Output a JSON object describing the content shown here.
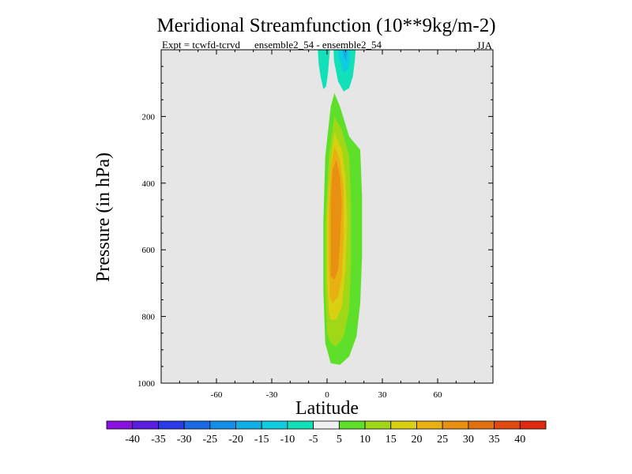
{
  "chart_data": {
    "type": "contour",
    "title": "Meridional Streamfunction (10**9kg/m-2)",
    "subtitle_left": "Expt = tcwfd-tcrvd",
    "subtitle_mid": "ensemble2_54 - ensemble2_54",
    "season": "JJA",
    "xlabel": "Latitude",
    "ylabel": "Pressure (in hPa)",
    "xlim": [
      -90,
      90
    ],
    "ylim": [
      1000,
      0
    ],
    "xticks": [
      -60,
      -30,
      0,
      30,
      60
    ],
    "yticks": [
      200,
      400,
      600,
      800,
      1000
    ],
    "background_color": "#e6e6e6",
    "colorbar": {
      "labels": [
        "-40",
        "-35",
        "-30",
        "-25",
        "-20",
        "-15",
        "-10",
        "-5",
        "5",
        "10",
        "15",
        "20",
        "25",
        "30",
        "35",
        "40"
      ],
      "colors": [
        "#8a12e0",
        "#5a1ee0",
        "#2a3ae6",
        "#1a6ae6",
        "#128ee6",
        "#10b0e6",
        "#10cce0",
        "#12e0b8",
        "#f0f0f0",
        "#5ee02a",
        "#a0d818",
        "#d8d010",
        "#e8b010",
        "#e89012",
        "#e07010",
        "#e04a10",
        "#e02a10"
      ]
    },
    "regions": [
      {
        "name": "positive-cell-15",
        "level": 5,
        "color": "#5ee02a",
        "points": [
          [
            -1,
            880
          ],
          [
            -2,
            720
          ],
          [
            -2,
            520
          ],
          [
            -1,
            320
          ],
          [
            2,
            170
          ],
          [
            4,
            130
          ],
          [
            7,
            170
          ],
          [
            12,
            260
          ],
          [
            18,
            300
          ],
          [
            19,
            440
          ],
          [
            19,
            620
          ],
          [
            18,
            760
          ],
          [
            16,
            860
          ],
          [
            12,
            920
          ],
          [
            7,
            945
          ],
          [
            2,
            940
          ]
        ]
      },
      {
        "name": "positive-cell-10",
        "level": 10,
        "color": "#a0d818",
        "points": [
          [
            0,
            850
          ],
          [
            -1,
            720
          ],
          [
            -1,
            520
          ],
          [
            1,
            320
          ],
          [
            4,
            200
          ],
          [
            8,
            240
          ],
          [
            12,
            320
          ],
          [
            13,
            460
          ],
          [
            13,
            640
          ],
          [
            12,
            780
          ],
          [
            9,
            860
          ],
          [
            5,
            890
          ],
          [
            2,
            880
          ]
        ]
      },
      {
        "name": "positive-cell-15b",
        "level": 15,
        "color": "#d8d010",
        "points": [
          [
            1,
            790
          ],
          [
            0,
            680
          ],
          [
            0,
            500
          ],
          [
            2,
            330
          ],
          [
            4,
            250
          ],
          [
            8,
            300
          ],
          [
            10,
            380
          ],
          [
            11,
            520
          ],
          [
            10,
            660
          ],
          [
            8,
            770
          ],
          [
            5,
            810
          ],
          [
            2,
            810
          ]
        ]
      },
      {
        "name": "positive-cell-20",
        "level": 20,
        "color": "#e8b010",
        "points": [
          [
            1.5,
            740
          ],
          [
            1,
            640
          ],
          [
            1,
            480
          ],
          [
            2,
            350
          ],
          [
            4,
            290
          ],
          [
            7,
            330
          ],
          [
            9,
            420
          ],
          [
            9,
            560
          ],
          [
            8,
            680
          ],
          [
            6,
            740
          ],
          [
            3,
            760
          ]
        ]
      },
      {
        "name": "positive-cell-25",
        "level": 25,
        "color": "#e89012",
        "points": [
          [
            2,
            680
          ],
          [
            2,
            580
          ],
          [
            2,
            440
          ],
          [
            3,
            360
          ],
          [
            5,
            330
          ],
          [
            7,
            380
          ],
          [
            8,
            460
          ],
          [
            7,
            580
          ],
          [
            6,
            660
          ],
          [
            4,
            690
          ]
        ]
      },
      {
        "name": "negative-cell-5-left",
        "level": -5,
        "color": "#12e0b8",
        "points": [
          [
            -5,
            0
          ],
          [
            -4.5,
            45
          ],
          [
            -3.5,
            80
          ],
          [
            -2,
            118
          ],
          [
            -0.5,
            110
          ],
          [
            0.5,
            70
          ],
          [
            1.5,
            0
          ]
        ]
      },
      {
        "name": "negative-cell-5-right",
        "level": -5,
        "color": "#12e0b8",
        "points": [
          [
            3.5,
            0
          ],
          [
            3.8,
            35
          ],
          [
            6,
            95
          ],
          [
            9,
            125
          ],
          [
            12,
            115
          ],
          [
            14,
            80
          ],
          [
            15,
            35
          ],
          [
            15.5,
            0
          ]
        ]
      },
      {
        "name": "negative-cell-10",
        "level": -10,
        "color": "#10cce0",
        "points": [
          [
            6,
            0
          ],
          [
            6.5,
            25
          ],
          [
            9,
            70
          ],
          [
            12,
            55
          ],
          [
            12.5,
            0
          ]
        ]
      },
      {
        "name": "negative-cell-15",
        "level": -15,
        "color": "#10b0e6",
        "points": [
          [
            8.5,
            0
          ],
          [
            9,
            22
          ],
          [
            10.5,
            35
          ],
          [
            11,
            0
          ]
        ]
      }
    ]
  }
}
